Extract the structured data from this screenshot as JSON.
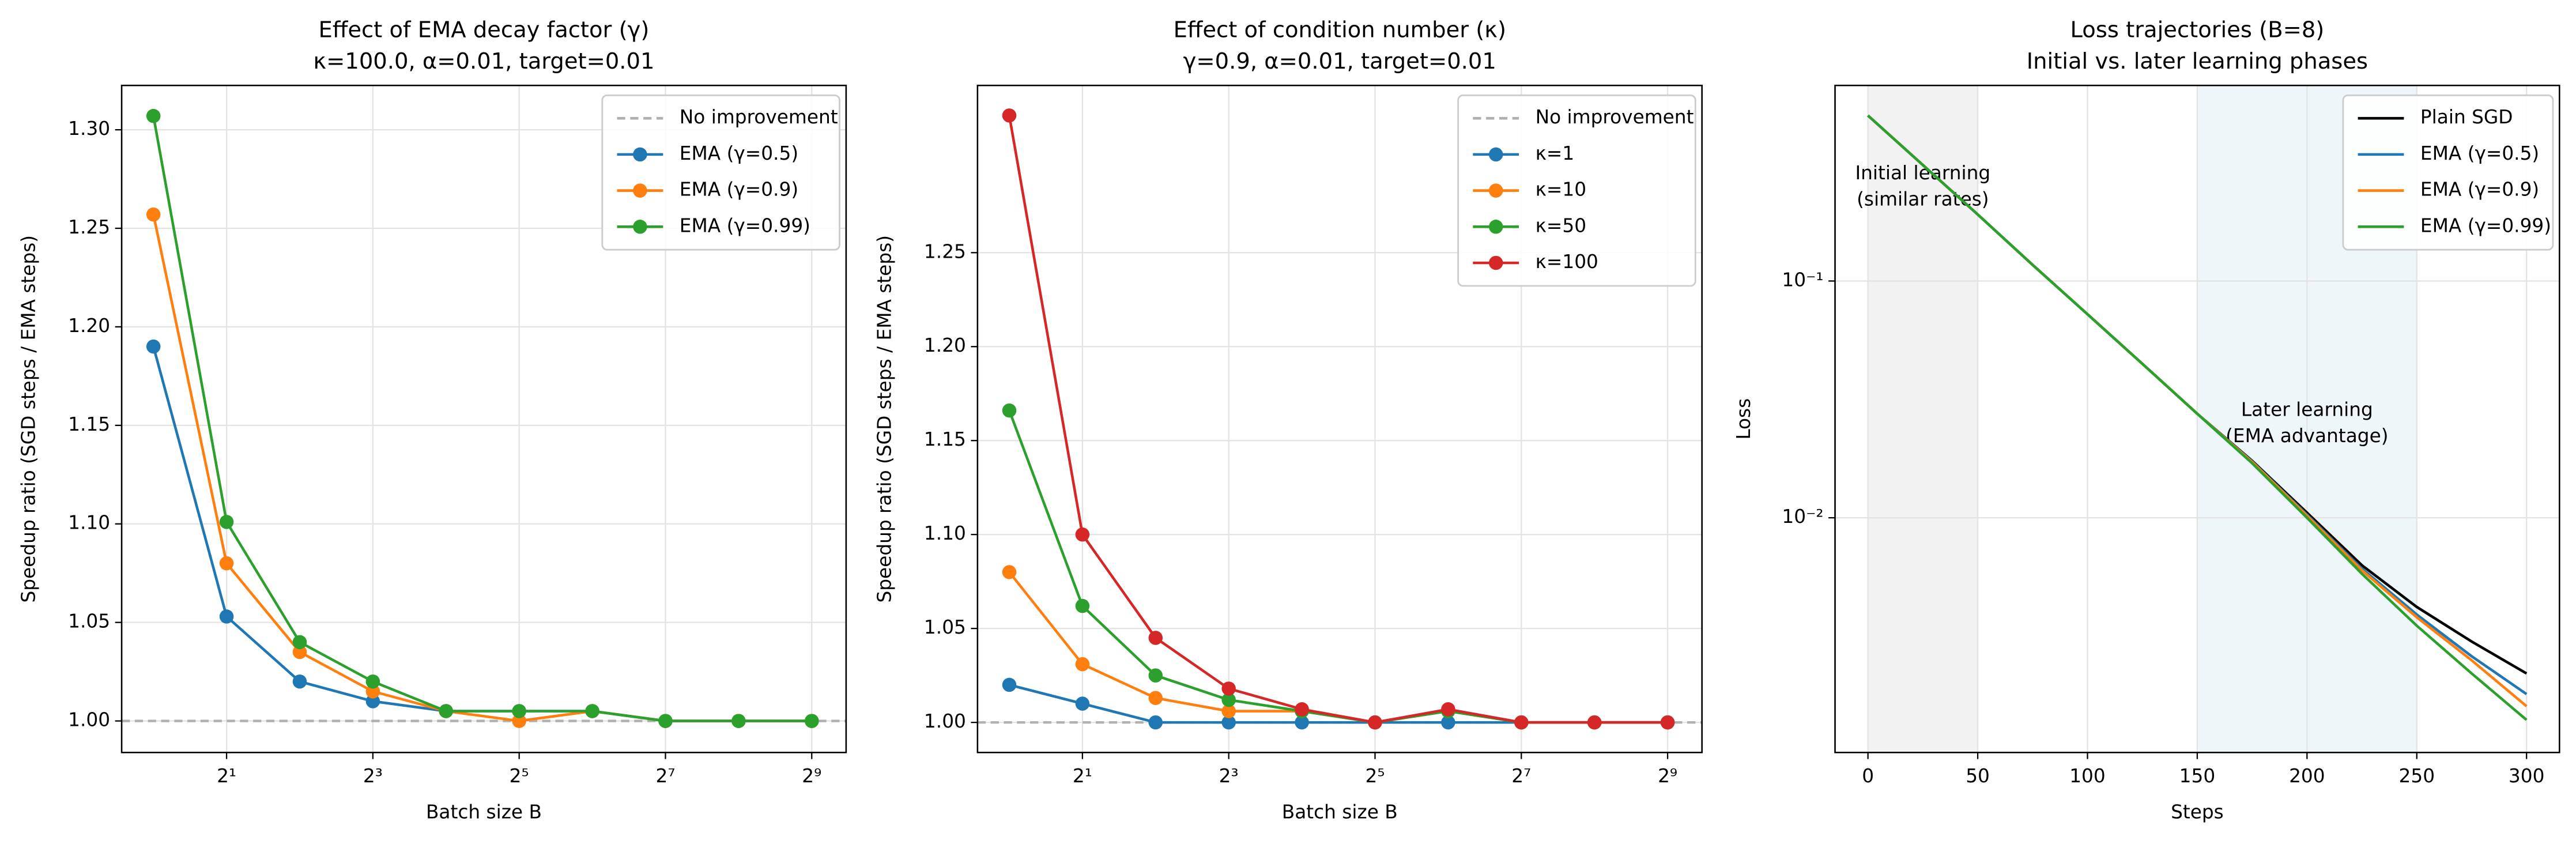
{
  "chart_data": [
    {
      "type": "line",
      "title": "Effect of EMA decay factor (γ)",
      "subtitle": "κ=100.0, α=0.01, target=0.01",
      "xlabel": "Batch size B",
      "ylabel": "Speedup ratio (SGD steps / EMA steps)",
      "x": [
        1,
        2,
        4,
        8,
        16,
        32,
        64,
        128,
        256,
        512
      ],
      "xscale": "log",
      "xlim": [
        0.74,
        709
      ],
      "xticks": [
        {
          "value": 2,
          "label": "2¹"
        },
        {
          "value": 8,
          "label": "2³"
        },
        {
          "value": 32,
          "label": "2⁵"
        },
        {
          "value": 128,
          "label": "2⁷"
        },
        {
          "value": 512,
          "label": "2⁹"
        }
      ],
      "ylim": [
        0.984,
        1.3225
      ],
      "yticks": [
        {
          "value": 1.0,
          "label": "1.00"
        },
        {
          "value": 1.05,
          "label": "1.05"
        },
        {
          "value": 1.1,
          "label": "1.10"
        },
        {
          "value": 1.15,
          "label": "1.15"
        },
        {
          "value": 1.2,
          "label": "1.20"
        },
        {
          "value": 1.25,
          "label": "1.25"
        },
        {
          "value": 1.3,
          "label": "1.30"
        }
      ],
      "grid": true,
      "markers": true,
      "legend": "upper right",
      "reference_line": {
        "name": "No improvement",
        "value": 1.0,
        "color": "#b0b0b0"
      },
      "series": [
        {
          "name": "EMA (γ=0.5)",
          "color": "#1f77b4",
          "values": [
            1.19,
            1.053,
            1.02,
            1.01,
            1.005,
            1.005,
            1.005,
            1.0,
            1.0,
            1.0
          ]
        },
        {
          "name": "EMA (γ=0.9)",
          "color": "#ff7f0e",
          "values": [
            1.257,
            1.08,
            1.035,
            1.015,
            1.005,
            1.0,
            1.005,
            1.0,
            1.0,
            1.0
          ]
        },
        {
          "name": "EMA (γ=0.99)",
          "color": "#2ca02c",
          "values": [
            1.307,
            1.101,
            1.04,
            1.02,
            1.005,
            1.005,
            1.005,
            1.0,
            1.0,
            1.0
          ]
        }
      ]
    },
    {
      "type": "line",
      "title": "Effect of condition number (κ)",
      "subtitle": "γ=0.9, α=0.01, target=0.01",
      "xlabel": "Batch size B",
      "ylabel": "Speedup ratio (SGD steps / EMA steps)",
      "x": [
        1,
        2,
        4,
        8,
        16,
        32,
        64,
        128,
        256,
        512
      ],
      "xscale": "log",
      "xlim": [
        0.74,
        709
      ],
      "xticks": [
        {
          "value": 2,
          "label": "2¹"
        },
        {
          "value": 8,
          "label": "2³"
        },
        {
          "value": 32,
          "label": "2⁵"
        },
        {
          "value": 128,
          "label": "2⁷"
        },
        {
          "value": 512,
          "label": "2⁹"
        }
      ],
      "ylim": [
        0.984,
        1.339
      ],
      "yticks": [
        {
          "value": 1.0,
          "label": "1.00"
        },
        {
          "value": 1.05,
          "label": "1.05"
        },
        {
          "value": 1.1,
          "label": "1.10"
        },
        {
          "value": 1.15,
          "label": "1.15"
        },
        {
          "value": 1.2,
          "label": "1.20"
        },
        {
          "value": 1.25,
          "label": "1.25"
        }
      ],
      "grid": true,
      "markers": true,
      "legend": "upper right",
      "reference_line": {
        "name": "No improvement",
        "value": 1.0,
        "color": "#b0b0b0"
      },
      "series": [
        {
          "name": "κ=1",
          "color": "#1f77b4",
          "values": [
            1.02,
            1.01,
            1.0,
            1.0,
            1.0,
            1.0,
            1.0,
            1.0,
            1.0,
            1.0
          ]
        },
        {
          "name": "κ=10",
          "color": "#ff7f0e",
          "values": [
            1.08,
            1.031,
            1.013,
            1.006,
            1.006,
            1.0,
            1.006,
            1.0,
            1.0,
            1.0
          ]
        },
        {
          "name": "κ=50",
          "color": "#2ca02c",
          "values": [
            1.166,
            1.062,
            1.025,
            1.012,
            1.006,
            1.0,
            1.006,
            1.0,
            1.0,
            1.0
          ]
        },
        {
          "name": "κ=100",
          "color": "#d62728",
          "values": [
            1.323,
            1.1,
            1.045,
            1.018,
            1.007,
            1.0,
            1.007,
            1.0,
            1.0,
            1.0
          ]
        }
      ]
    },
    {
      "type": "line",
      "title": "Loss trajectories (B=8)",
      "subtitle": "Initial vs. later learning phases",
      "xlabel": "Steps",
      "ylabel": "Loss",
      "x": [
        0,
        25,
        50,
        75,
        100,
        125,
        150,
        175,
        200,
        225,
        250,
        275,
        300
      ],
      "xlim": [
        -15,
        315
      ],
      "xticks": [
        0,
        50,
        100,
        150,
        200,
        250,
        300
      ],
      "yscale": "log",
      "ylim": [
        0.00102,
        0.67
      ],
      "yticks": [
        {
          "value": 0.01,
          "label": "10⁻²"
        },
        {
          "value": 0.1,
          "label": "10⁻¹"
        }
      ],
      "grid": true,
      "markers": false,
      "legend": "upper right",
      "spans": [
        {
          "range": [
            0,
            50
          ],
          "color": "#d9d9d9",
          "label": [
            "Initial learning",
            "(similar rates)"
          ]
        },
        {
          "range": [
            150,
            250
          ],
          "color": "#cde6ee",
          "label": [
            "Later learning",
            "(EMA advantage)"
          ]
        }
      ],
      "series": [
        {
          "name": "Plain SGD",
          "color": "#000000",
          "values": [
            0.5,
            0.309,
            0.191,
            0.117,
            0.0724,
            0.0447,
            0.0275,
            0.0174,
            0.0105,
            0.0063,
            0.0042,
            0.003,
            0.0022
          ]
        },
        {
          "name": "EMA (γ=0.5)",
          "color": "#1f77b4",
          "values": [
            0.5,
            0.309,
            0.191,
            0.117,
            0.0724,
            0.0447,
            0.0275,
            0.0173,
            0.0103,
            0.0061,
            0.0039,
            0.0026,
            0.0018
          ]
        },
        {
          "name": "EMA (γ=0.9)",
          "color": "#ff7f0e",
          "values": [
            0.5,
            0.309,
            0.191,
            0.117,
            0.0724,
            0.0447,
            0.0275,
            0.0172,
            0.0102,
            0.006,
            0.0038,
            0.0025,
            0.0016
          ]
        },
        {
          "name": "EMA (γ=0.99)",
          "color": "#2ca02c",
          "values": [
            0.5,
            0.309,
            0.191,
            0.117,
            0.0724,
            0.0447,
            0.0275,
            0.017,
            0.01,
            0.0058,
            0.0035,
            0.0022,
            0.0014
          ]
        }
      ]
    }
  ]
}
